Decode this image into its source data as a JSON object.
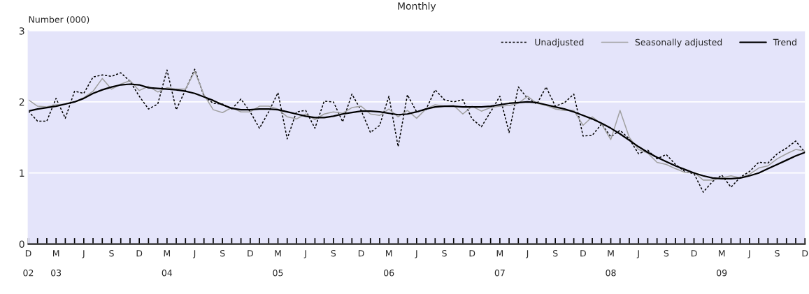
{
  "chart_data": {
    "type": "line",
    "title": "Monthly",
    "ylabel": "Number (000)",
    "categories": [
      "D\n\n02",
      null,
      null,
      "M\n\n03",
      null,
      null,
      "J",
      null,
      null,
      "S",
      null,
      null,
      "D",
      null,
      null,
      "M\n\n04",
      null,
      null,
      "J",
      null,
      null,
      "S",
      null,
      null,
      "D",
      null,
      null,
      "M\n\n05",
      null,
      null,
      "J",
      null,
      null,
      "S",
      null,
      null,
      "D",
      null,
      null,
      "M\n\n06",
      null,
      null,
      "J",
      null,
      null,
      "S",
      null,
      null,
      "D",
      null,
      null,
      "M\n\n07",
      null,
      null,
      "J",
      null,
      null,
      "S",
      null,
      null,
      "D",
      null,
      null,
      "M\n\n08",
      null,
      null,
      "J",
      null,
      null,
      "S",
      null,
      null,
      "D",
      null,
      null,
      "M\n\n09",
      null,
      null,
      "J",
      null,
      null,
      "S",
      null,
      null,
      "D"
    ],
    "series": [
      {
        "name": "Unadjusted",
        "color": "#000000",
        "line_style": "dotted",
        "values": [
          1.87,
          1.73,
          1.73,
          2.05,
          1.77,
          2.15,
          2.12,
          2.35,
          2.38,
          2.36,
          2.41,
          2.29,
          2.08,
          1.9,
          1.97,
          2.45,
          1.89,
          2.17,
          2.46,
          2.08,
          1.98,
          1.97,
          1.9,
          2.04,
          1.86,
          1.63,
          1.86,
          2.13,
          1.48,
          1.86,
          1.88,
          1.63,
          2.01,
          2.0,
          1.72,
          2.11,
          1.88,
          1.57,
          1.67,
          2.08,
          1.37,
          2.1,
          1.86,
          1.89,
          2.17,
          2.03,
          2.0,
          2.03,
          1.76,
          1.65,
          1.86,
          2.08,
          1.57,
          2.21,
          2.05,
          1.97,
          2.21,
          1.94,
          1.99,
          2.11,
          1.52,
          1.53,
          1.69,
          1.51,
          1.6,
          1.48,
          1.27,
          1.32,
          1.2,
          1.26,
          1.12,
          1.02,
          0.99,
          0.73,
          0.88,
          0.97,
          0.8,
          0.94,
          1.02,
          1.15,
          1.14,
          1.27,
          1.35,
          1.45,
          1.29
        ]
      },
      {
        "name": "Seasonally adjusted",
        "color": "#a0a0a0",
        "line_style": "solid",
        "values": [
          2.03,
          1.94,
          1.93,
          1.96,
          1.97,
          2.0,
          2.06,
          2.15,
          2.33,
          2.18,
          2.25,
          2.3,
          2.16,
          2.22,
          2.14,
          2.2,
          2.18,
          2.18,
          2.43,
          2.1,
          1.89,
          1.85,
          1.92,
          1.86,
          1.86,
          1.94,
          1.94,
          1.9,
          1.79,
          1.76,
          1.83,
          1.75,
          1.83,
          1.86,
          1.84,
          1.92,
          1.94,
          1.83,
          1.81,
          1.9,
          1.79,
          1.88,
          1.77,
          1.9,
          1.96,
          1.94,
          1.95,
          1.83,
          1.94,
          1.87,
          1.92,
          1.94,
          1.95,
          1.98,
          2.08,
          1.98,
          1.95,
          1.9,
          1.88,
          1.88,
          1.67,
          1.79,
          1.69,
          1.47,
          1.88,
          1.5,
          1.33,
          1.28,
          1.15,
          1.12,
          1.06,
          1.01,
          1.01,
          0.9,
          0.9,
          0.93,
          0.96,
          0.93,
          0.98,
          1.07,
          1.1,
          1.2,
          1.27,
          1.33,
          1.31
        ]
      },
      {
        "name": "Trend",
        "color": "#000000",
        "line_style": "solid",
        "values": [
          1.87,
          1.9,
          1.92,
          1.94,
          1.97,
          2.0,
          2.05,
          2.12,
          2.17,
          2.21,
          2.24,
          2.25,
          2.24,
          2.2,
          2.19,
          2.18,
          2.17,
          2.15,
          2.12,
          2.07,
          2.02,
          1.96,
          1.91,
          1.89,
          1.89,
          1.9,
          1.9,
          1.89,
          1.86,
          1.83,
          1.8,
          1.78,
          1.78,
          1.8,
          1.83,
          1.85,
          1.87,
          1.87,
          1.86,
          1.84,
          1.82,
          1.83,
          1.86,
          1.9,
          1.93,
          1.94,
          1.94,
          1.93,
          1.93,
          1.93,
          1.94,
          1.96,
          1.98,
          1.99,
          2.0,
          1.99,
          1.96,
          1.93,
          1.9,
          1.86,
          1.81,
          1.76,
          1.7,
          1.63,
          1.55,
          1.46,
          1.37,
          1.29,
          1.22,
          1.16,
          1.1,
          1.05,
          1.0,
          0.96,
          0.93,
          0.92,
          0.92,
          0.93,
          0.96,
          1.0,
          1.06,
          1.12,
          1.18,
          1.24,
          1.29
        ]
      }
    ],
    "ylim": [
      0,
      3
    ],
    "yticks": [
      0,
      1,
      2,
      3
    ],
    "grid": "y",
    "legend": "top right",
    "marker": "none"
  }
}
